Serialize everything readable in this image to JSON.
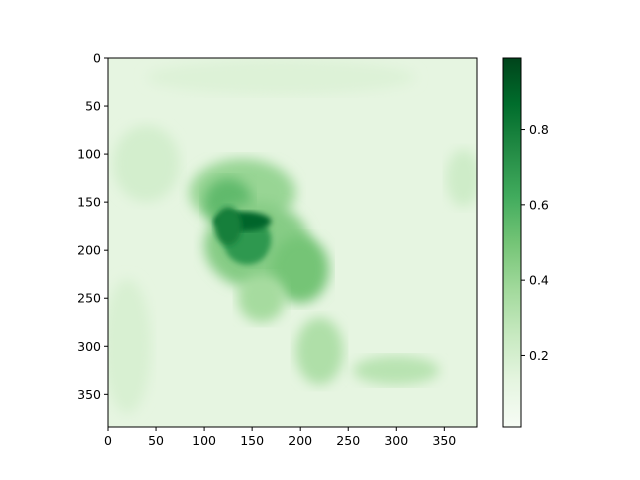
{
  "chart_data": {
    "type": "heatmap",
    "title": "",
    "xlabel": "",
    "ylabel": "",
    "image_size": [
      384,
      384
    ],
    "xlim": [
      0,
      384
    ],
    "ylim": [
      384,
      0
    ],
    "x_ticks": [
      "0",
      "50",
      "100",
      "150",
      "200",
      "250",
      "300",
      "350"
    ],
    "y_ticks": [
      "0",
      "50",
      "100",
      "150",
      "200",
      "250",
      "300",
      "350"
    ],
    "x_tick_values": [
      0,
      50,
      100,
      150,
      200,
      250,
      300,
      350
    ],
    "y_tick_values": [
      0,
      50,
      100,
      150,
      200,
      250,
      300,
      350
    ],
    "colormap": "Greens",
    "colormap_colors": [
      "#f7fcf5",
      "#e5f5e0",
      "#c7e9c0",
      "#a1d99b",
      "#74c476",
      "#41ab5d",
      "#238b45",
      "#006d2c",
      "#00441b"
    ],
    "value_range": [
      0.0,
      1.0
    ],
    "background_value": 0.12,
    "colorbar_ticks": [
      "0.2",
      "0.4",
      "0.6",
      "0.8"
    ],
    "colorbar_tick_values": [
      0.2,
      0.4,
      0.6,
      0.8
    ],
    "colorbar_range": [
      0.01,
      0.99
    ],
    "regions": [
      {
        "name": "upper-left haze",
        "cx": 40,
        "cy": 110,
        "rx": 35,
        "ry": 40,
        "value": 0.2
      },
      {
        "name": "left column haze",
        "cx": 20,
        "cy": 300,
        "rx": 25,
        "ry": 70,
        "value": 0.18
      },
      {
        "name": "top band",
        "cx": 180,
        "cy": 20,
        "rx": 140,
        "ry": 18,
        "value": 0.16
      },
      {
        "name": "right edge",
        "cx": 370,
        "cy": 125,
        "rx": 18,
        "ry": 30,
        "value": 0.22
      },
      {
        "name": "umbrella hood",
        "cx": 140,
        "cy": 140,
        "rx": 55,
        "ry": 35,
        "value": 0.4
      },
      {
        "name": "head",
        "cx": 125,
        "cy": 150,
        "rx": 25,
        "ry": 25,
        "value": 0.55
      },
      {
        "name": "torso",
        "cx": 155,
        "cy": 195,
        "rx": 55,
        "ry": 45,
        "value": 0.45
      },
      {
        "name": "core",
        "cx": 145,
        "cy": 190,
        "rx": 25,
        "ry": 25,
        "value": 0.7
      },
      {
        "name": "dark arc",
        "cx": 140,
        "cy": 170,
        "rx": 30,
        "ry": 10,
        "value": 0.9
      },
      {
        "name": "dark left",
        "cx": 125,
        "cy": 175,
        "rx": 14,
        "ry": 20,
        "value": 0.8
      },
      {
        "name": "right wing",
        "cx": 200,
        "cy": 220,
        "rx": 30,
        "ry": 35,
        "value": 0.5
      },
      {
        "name": "lower leg",
        "cx": 220,
        "cy": 305,
        "rx": 25,
        "ry": 35,
        "value": 0.33
      },
      {
        "name": "foot",
        "cx": 300,
        "cy": 325,
        "rx": 45,
        "ry": 15,
        "value": 0.3
      },
      {
        "name": "lower leg left",
        "cx": 160,
        "cy": 250,
        "rx": 25,
        "ry": 25,
        "value": 0.36
      }
    ]
  }
}
